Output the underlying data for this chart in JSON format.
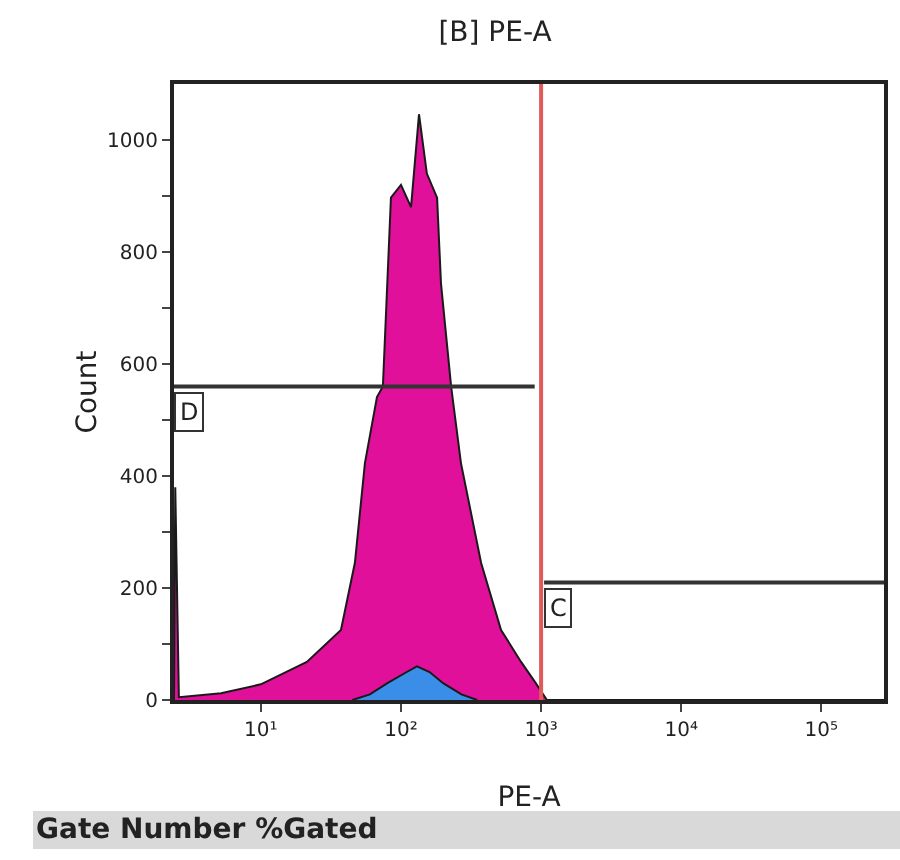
{
  "chart_data": {
    "type": "area",
    "title": "[B] PE-A",
    "xlabel": "PE-A",
    "ylabel": "Count",
    "log": "x",
    "grid": false,
    "xlim": [
      2.4,
      280000
    ],
    "xticks": [
      {
        "value": 10,
        "label": "10¹"
      },
      {
        "value": 100,
        "label": "10²"
      },
      {
        "value": 1000,
        "label": "10³"
      },
      {
        "value": 10000,
        "label": "10⁴"
      },
      {
        "value": 100000,
        "label": "10⁵"
      }
    ],
    "ylim": [
      0,
      1100
    ],
    "yticks": [
      0,
      {
        "value": 100,
        "label": null
      },
      200,
      {
        "value": 300,
        "label": null
      },
      400,
      {
        "value": 500,
        "label": null
      },
      600,
      {
        "value": 700,
        "label": null
      },
      800,
      {
        "value": 900,
        "label": null
      },
      1000
    ],
    "series": [
      {
        "color": "#e0109a",
        "x": [
          2.4,
          2.45,
          2.6,
          5.2,
          10,
          21.3,
          37.3,
          46.9,
          55.3,
          67.4,
          74.3,
          84.8,
          100,
          118,
          134.5,
          153,
          181,
          193,
          228,
          268,
          373,
          518,
          720,
          906,
          1100,
          280000
        ],
        "values": [
          0,
          380,
          5,
          12,
          28,
          68,
          125,
          245,
          423,
          541,
          560,
          897,
          920,
          880,
          1046,
          940,
          897,
          744,
          560,
          423,
          245,
          125,
          68,
          32,
          0,
          0
        ]
      },
      {
        "color": "#3a8ee8",
        "x": [
          45,
          60,
          80,
          110,
          130,
          160,
          200,
          270,
          350
        ],
        "values": [
          0,
          10,
          30,
          50,
          60,
          50,
          30,
          10,
          0
        ]
      },
      {
        "type": "line",
        "color": "#333333",
        "x": [
          2.4,
          900
        ],
        "values": [
          560,
          560
        ]
      },
      {
        "type": "line",
        "color": "#333333",
        "x": [
          1050,
          280000
        ],
        "values": [
          210,
          210
        ]
      }
    ],
    "ref_lines": [
      {
        "axis": "x",
        "value": 1000,
        "color": "#e05a5a"
      }
    ],
    "annotations": [
      {
        "text": "D",
        "x": 2.4,
        "y": 560
      },
      {
        "text": "C",
        "x": 1050,
        "y": 210
      },
      "Gate Number %Gated"
    ]
  }
}
